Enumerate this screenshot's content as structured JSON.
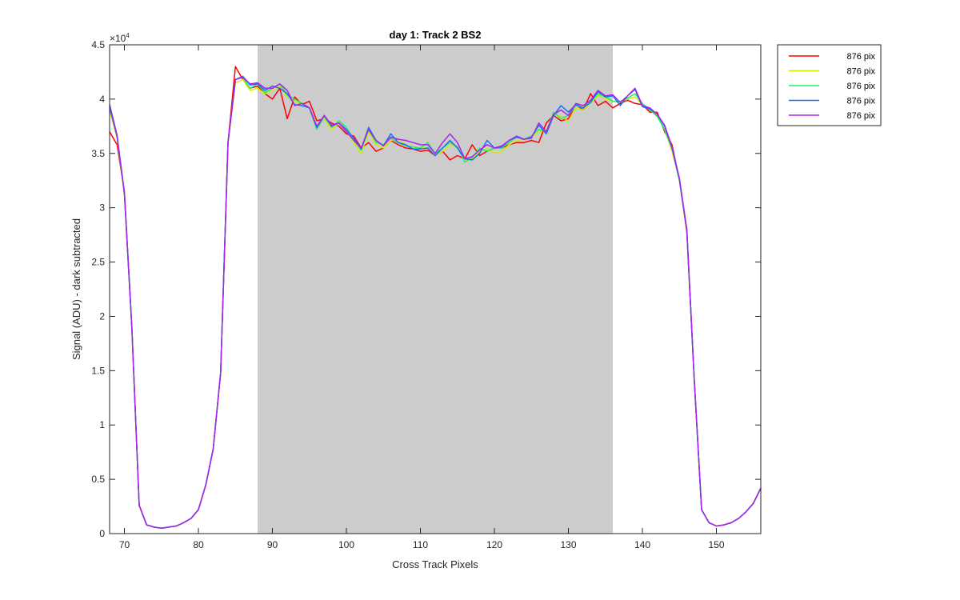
{
  "chart_data": {
    "type": "line",
    "title": "day 1: Track 2  BS2",
    "xlabel": "Cross Track Pixels",
    "ylabel": "Signal (ADU) - dark subtracted",
    "y_exponent_label": "×10",
    "y_exponent_power": "4",
    "xlim": [
      68,
      156
    ],
    "ylim": [
      0,
      4.5
    ],
    "x_ticks": [
      70,
      80,
      90,
      100,
      110,
      120,
      130,
      140,
      150
    ],
    "y_ticks": [
      0,
      0.5,
      1,
      1.5,
      2,
      2.5,
      3,
      3.5,
      4,
      4.5
    ],
    "y_tick_labels": [
      "0",
      "0.5",
      "1",
      "1.5",
      "2",
      "2.5",
      "3",
      "3.5",
      "4",
      "4.5"
    ],
    "shaded_region": {
      "x_start": 88,
      "x_end": 136,
      "color": "#cccccc"
    },
    "legend_position": "outside-top-right",
    "x": [
      68,
      69,
      70,
      71,
      72,
      73,
      74,
      75,
      76,
      77,
      78,
      79,
      80,
      81,
      82,
      83,
      84,
      85,
      86,
      87,
      88,
      89,
      90,
      91,
      92,
      93,
      94,
      95,
      96,
      97,
      98,
      99,
      100,
      101,
      102,
      103,
      104,
      105,
      106,
      107,
      108,
      109,
      110,
      111,
      112,
      113,
      114,
      115,
      116,
      117,
      118,
      119,
      120,
      121,
      122,
      123,
      124,
      125,
      126,
      127,
      128,
      129,
      130,
      131,
      132,
      133,
      134,
      135,
      136,
      137,
      138,
      139,
      140,
      141,
      142,
      143,
      144,
      145,
      146,
      147,
      148,
      149,
      150,
      151,
      152,
      153,
      154,
      155,
      156
    ],
    "series": [
      {
        "name": "876 pix",
        "color": "#ff0000",
        "values": [
          3.7,
          3.58,
          3.15,
          1.9,
          0.26,
          0.08,
          0.06,
          0.05,
          0.06,
          0.07,
          0.1,
          0.14,
          0.22,
          0.45,
          0.78,
          1.48,
          3.6,
          4.3,
          4.18,
          4.1,
          4.12,
          4.05,
          4.0,
          4.1,
          3.82,
          4.02,
          3.95,
          3.98,
          3.8,
          3.82,
          3.78,
          3.75,
          3.68,
          3.66,
          3.55,
          3.6,
          3.52,
          3.55,
          3.62,
          3.58,
          3.55,
          3.54,
          3.52,
          3.53,
          3.48,
          3.52,
          3.44,
          3.48,
          3.45,
          3.58,
          3.48,
          3.52,
          3.55,
          3.55,
          3.58,
          3.6,
          3.6,
          3.62,
          3.6,
          3.78,
          3.85,
          3.8,
          3.82,
          3.95,
          3.9,
          4.05,
          3.94,
          3.98,
          3.92,
          3.96,
          3.99,
          3.96,
          3.95,
          3.88,
          3.88,
          3.7,
          3.58,
          3.25,
          2.78,
          1.42,
          0.22,
          0.1,
          0.07,
          0.08,
          0.1,
          0.14,
          0.2,
          0.28,
          0.42
        ]
      },
      {
        "name": "876 pix",
        "color": "#ccee00",
        "values": [
          3.9,
          3.64,
          3.12,
          1.9,
          0.26,
          0.08,
          0.06,
          0.05,
          0.06,
          0.07,
          0.1,
          0.14,
          0.22,
          0.45,
          0.78,
          1.48,
          3.6,
          4.15,
          4.18,
          4.08,
          4.1,
          4.05,
          4.08,
          4.12,
          4.02,
          3.98,
          3.95,
          3.92,
          3.75,
          3.82,
          3.72,
          3.78,
          3.72,
          3.6,
          3.5,
          3.7,
          3.58,
          3.55,
          3.62,
          3.62,
          3.58,
          3.55,
          3.55,
          3.55,
          3.48,
          3.52,
          3.58,
          3.55,
          3.45,
          3.45,
          3.52,
          3.55,
          3.5,
          3.52,
          3.58,
          3.62,
          3.62,
          3.65,
          3.7,
          3.72,
          3.86,
          3.84,
          3.8,
          3.92,
          3.9,
          3.96,
          4.04,
          4.0,
          3.98,
          3.97,
          4.0,
          4.02,
          3.95,
          3.9,
          3.85,
          3.72,
          3.52,
          3.25,
          2.8,
          1.42,
          0.22,
          0.1,
          0.07,
          0.08,
          0.1,
          0.14,
          0.2,
          0.28,
          0.42
        ]
      },
      {
        "name": "876 pix",
        "color": "#22ee66",
        "values": [
          3.92,
          3.66,
          3.13,
          1.9,
          0.26,
          0.08,
          0.06,
          0.05,
          0.06,
          0.07,
          0.1,
          0.14,
          0.22,
          0.45,
          0.78,
          1.48,
          3.6,
          4.18,
          4.2,
          4.1,
          4.14,
          4.06,
          4.1,
          4.14,
          4.04,
          4.0,
          3.96,
          3.92,
          3.72,
          3.84,
          3.74,
          3.8,
          3.74,
          3.62,
          3.53,
          3.72,
          3.6,
          3.58,
          3.64,
          3.6,
          3.57,
          3.56,
          3.55,
          3.6,
          3.5,
          3.55,
          3.6,
          3.56,
          3.42,
          3.46,
          3.55,
          3.52,
          3.55,
          3.55,
          3.6,
          3.65,
          3.63,
          3.66,
          3.72,
          3.7,
          3.88,
          3.82,
          3.85,
          3.94,
          3.92,
          3.98,
          4.05,
          4.02,
          3.98,
          3.98,
          4.01,
          4.05,
          3.96,
          3.9,
          3.84,
          3.72,
          3.55,
          3.25,
          2.8,
          1.42,
          0.22,
          0.1,
          0.07,
          0.08,
          0.1,
          0.14,
          0.2,
          0.28,
          0.42
        ]
      },
      {
        "name": "876 pix",
        "color": "#1a6cff",
        "values": [
          3.95,
          3.67,
          3.14,
          1.9,
          0.26,
          0.08,
          0.06,
          0.05,
          0.06,
          0.07,
          0.1,
          0.14,
          0.22,
          0.45,
          0.78,
          1.48,
          3.6,
          4.18,
          4.21,
          4.13,
          4.14,
          4.08,
          4.12,
          4.1,
          4.05,
          3.95,
          3.94,
          3.92,
          3.74,
          3.85,
          3.75,
          3.78,
          3.72,
          3.64,
          3.54,
          3.74,
          3.62,
          3.57,
          3.68,
          3.6,
          3.58,
          3.54,
          3.54,
          3.55,
          3.48,
          3.55,
          3.62,
          3.55,
          3.45,
          3.44,
          3.5,
          3.62,
          3.55,
          3.56,
          3.62,
          3.66,
          3.63,
          3.65,
          3.76,
          3.68,
          3.85,
          3.94,
          3.88,
          3.95,
          3.92,
          3.97,
          4.07,
          4.02,
          4.03,
          3.94,
          4.03,
          4.09,
          3.93,
          3.91,
          3.86,
          3.75,
          3.55,
          3.26,
          2.8,
          1.42,
          0.22,
          0.1,
          0.07,
          0.08,
          0.1,
          0.14,
          0.2,
          0.28,
          0.42
        ]
      },
      {
        "name": "876 pix",
        "color": "#aa22ee",
        "values": [
          3.93,
          3.66,
          3.13,
          1.9,
          0.26,
          0.08,
          0.06,
          0.05,
          0.06,
          0.07,
          0.1,
          0.14,
          0.22,
          0.45,
          0.78,
          1.48,
          3.6,
          4.18,
          4.2,
          4.14,
          4.15,
          4.1,
          4.1,
          4.14,
          4.08,
          3.94,
          3.96,
          3.92,
          3.75,
          3.85,
          3.76,
          3.78,
          3.7,
          3.62,
          3.55,
          3.72,
          3.62,
          3.57,
          3.65,
          3.63,
          3.62,
          3.6,
          3.58,
          3.58,
          3.5,
          3.6,
          3.68,
          3.6,
          3.45,
          3.47,
          3.53,
          3.58,
          3.55,
          3.57,
          3.62,
          3.65,
          3.63,
          3.64,
          3.78,
          3.7,
          3.86,
          3.9,
          3.85,
          3.96,
          3.94,
          3.99,
          4.08,
          4.03,
          4.04,
          3.97,
          4.03,
          4.1,
          3.94,
          3.92,
          3.86,
          3.76,
          3.56,
          3.27,
          2.8,
          1.42,
          0.22,
          0.1,
          0.07,
          0.08,
          0.1,
          0.14,
          0.2,
          0.28,
          0.42
        ]
      }
    ]
  }
}
